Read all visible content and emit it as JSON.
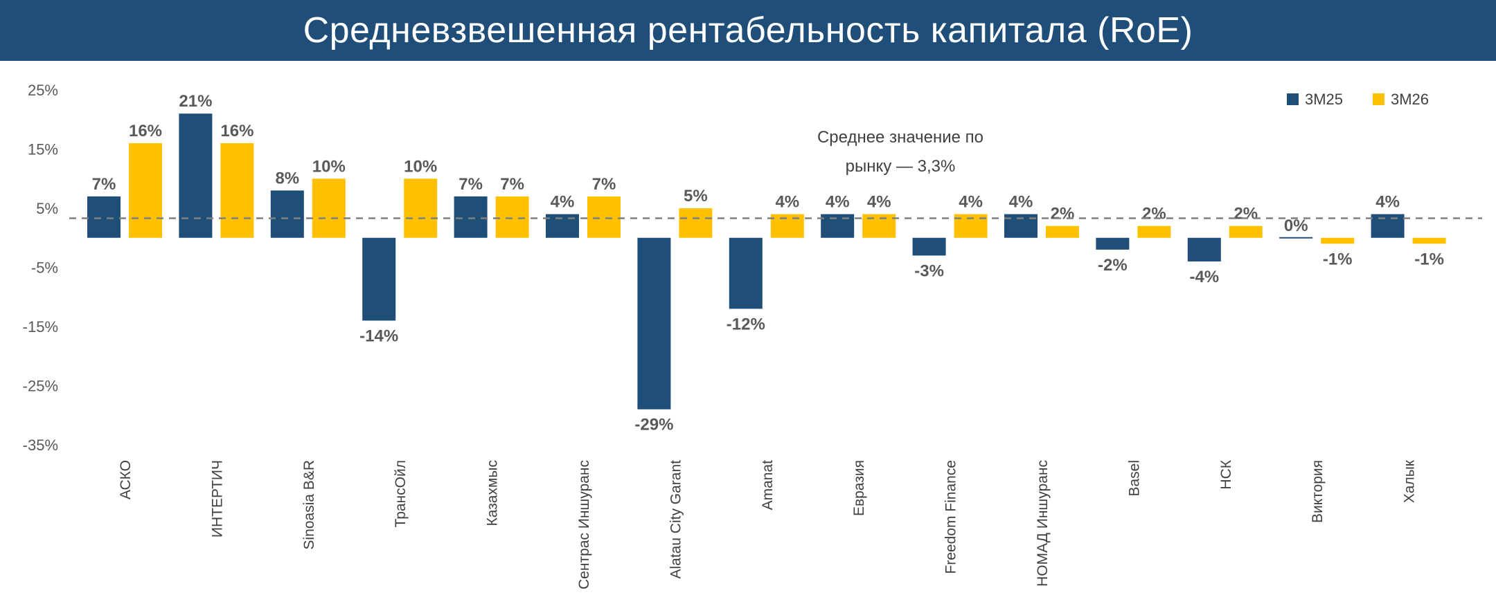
{
  "title": "Средневзвешенная рентабельность капитала (RoE)",
  "chart_data": {
    "type": "bar",
    "categories": [
      "АСКО",
      "ИНТЕРТИЧ",
      "Sinoasia B&R",
      "ТрансОйл",
      "Казахмыс",
      "Сентрас Иншуранс",
      "Alatau City Garant",
      "Amanat",
      "Евразия",
      "Freedom Finance",
      "НОМАД Иншуранс",
      "Basel",
      "НСК",
      "Виктория",
      "Халык"
    ],
    "series": [
      {
        "name": "3М25",
        "color": "#1F4E79",
        "values": [
          7,
          21,
          8,
          -14,
          7,
          4,
          -29,
          -12,
          4,
          -3,
          4,
          -2,
          -4,
          0,
          4
        ],
        "labels": [
          "7%",
          "21%",
          "8%",
          "-14%",
          "7%",
          "4%",
          "-29%",
          "-12%",
          "4%",
          "-3%",
          "4%",
          "-2%",
          "-4%",
          "0%",
          "4%"
        ]
      },
      {
        "name": "3М26",
        "color": "#FFC000",
        "values": [
          16,
          16,
          10,
          10,
          7,
          7,
          5,
          4,
          4,
          4,
          2,
          2,
          2,
          -1,
          -1
        ],
        "labels": [
          "16%",
          "16%",
          "10%",
          "10%",
          "7%",
          "7%",
          "5%",
          "4%",
          "4%",
          "4%",
          "2%",
          "2%",
          "2%",
          "-1%",
          "-1%"
        ]
      }
    ],
    "y_ticks": [
      25,
      15,
      5,
      -5,
      -15,
      -25,
      -35
    ],
    "y_tick_labels": [
      "25%",
      "15%",
      "5%",
      "-5%",
      "-15%",
      "-25%",
      "-35%"
    ],
    "ylim": [
      -35,
      25
    ],
    "grid": false,
    "legend_position": "top-right",
    "average": {
      "value": 3.3,
      "color": "#7F7F7F",
      "label_line1": "Среднее значение по",
      "label_line2": "рынку — 3,3%"
    }
  }
}
